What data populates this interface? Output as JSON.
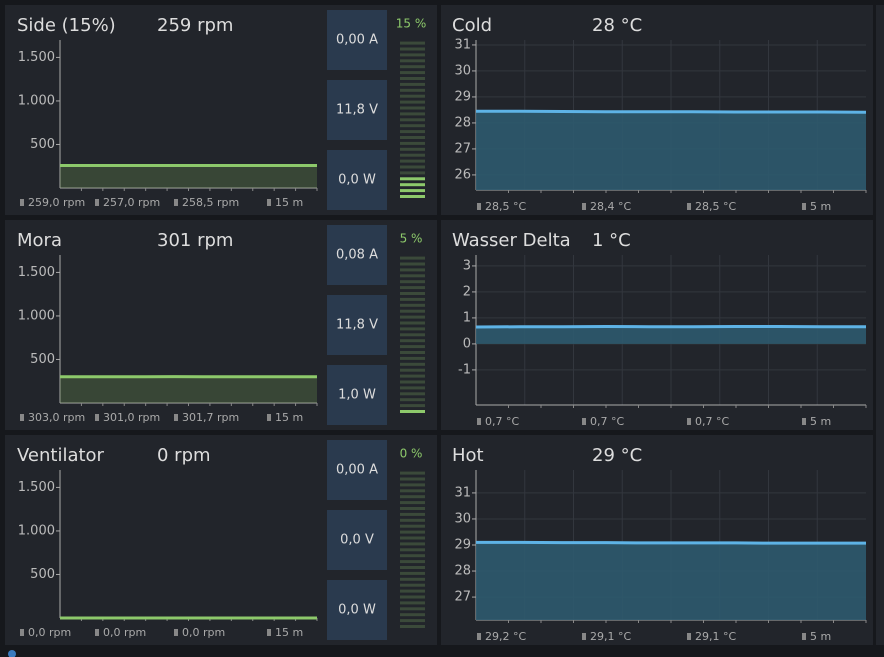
{
  "panels": [
    {
      "title": "Side (15%)",
      "reading": "259 rpm",
      "stats": [
        "259,0 rpm",
        "257,0 rpm",
        "258,5 rpm",
        "15 m"
      ],
      "boxes": [
        "0,00 A",
        "11,8 V",
        "0,0 W"
      ],
      "gauge": {
        "label": "15 %",
        "value": 15
      },
      "chart": {
        "color": "#8dc96b",
        "ylim": [
          0,
          1700
        ],
        "yticks": [
          {
            "value": 500,
            "label": "500"
          },
          {
            "value": 1000,
            "label": "1.000"
          },
          {
            "value": 1500,
            "label": "1.500"
          }
        ],
        "values": [
          258,
          259,
          258,
          259,
          259,
          258,
          259,
          258,
          259,
          258
        ]
      }
    },
    {
      "title": "Cold",
      "reading": "28 °C",
      "stats": [
        "28,5 °C",
        "28,4 °C",
        "28,5 °C",
        "5 m"
      ],
      "chart": {
        "color": "#5eb3e6",
        "ylim": [
          25.42,
          31.19
        ],
        "yticks": [
          26,
          27,
          28,
          29,
          30,
          31
        ],
        "values": [
          28.45,
          28.45,
          28.44,
          28.43,
          28.43,
          28.43,
          28.42,
          28.42,
          28.42,
          28.41
        ]
      }
    },
    {
      "title": "Mora",
      "reading": "301 rpm",
      "stats": [
        "303,0 rpm",
        "301,0 rpm",
        "301,7 rpm",
        "15 m"
      ],
      "boxes": [
        "0,08 A",
        "11,8 V",
        "1,0 W"
      ],
      "gauge": {
        "label": "5 %",
        "value": 5
      },
      "chart": {
        "color": "#8dc96b",
        "ylim": [
          0,
          1700
        ],
        "yticks": [
          {
            "value": 500,
            "label": "500"
          },
          {
            "value": 1000,
            "label": "1.000"
          },
          {
            "value": 1500,
            "label": "1.500"
          }
        ],
        "values": [
          302,
          301,
          302,
          302,
          303,
          301,
          302,
          301,
          302,
          301
        ]
      }
    },
    {
      "title": "Wasser Delta",
      "reading": "1 °C",
      "stats": [
        "0,7 °C",
        "0,7 °C",
        "0,7 °C",
        "5 m"
      ],
      "chart": {
        "color": "#5eb3e6",
        "ylim": [
          -2.35,
          3.42
        ],
        "yticks": [
          -1,
          0,
          1,
          2,
          3
        ],
        "values": [
          0.65,
          0.66,
          0.66,
          0.67,
          0.66,
          0.66,
          0.67,
          0.67,
          0.66,
          0.66
        ]
      }
    },
    {
      "title": "Ventilator",
      "reading": "0 rpm",
      "stats": [
        "0,0 rpm",
        "0,0 rpm",
        "0,0 rpm",
        "15 m"
      ],
      "boxes": [
        "0,00 A",
        "0,0 V",
        "0,0 W"
      ],
      "gauge": {
        "label": "0 %",
        "value": 0
      },
      "chart": {
        "color": "#8dc96b",
        "ylim": [
          0,
          1700
        ],
        "yticks": [
          {
            "value": 500,
            "label": "500"
          },
          {
            "value": 1000,
            "label": "1.000"
          },
          {
            "value": 1500,
            "label": "1.500"
          }
        ],
        "values": [
          0,
          0,
          0,
          0,
          0,
          0,
          0,
          0,
          0,
          0
        ]
      }
    },
    {
      "title": "Hot",
      "reading": "29 °C",
      "stats": [
        "29,2 °C",
        "29,1 °C",
        "29,1 °C",
        "5 m"
      ],
      "chart": {
        "color": "#5eb3e6",
        "ylim": [
          26.12,
          31.88
        ],
        "yticks": [
          27,
          28,
          29,
          30,
          31
        ],
        "values": [
          29.1,
          29.1,
          29.09,
          29.09,
          29.08,
          29.08,
          29.08,
          29.07,
          29.07,
          29.07
        ]
      }
    }
  ]
}
